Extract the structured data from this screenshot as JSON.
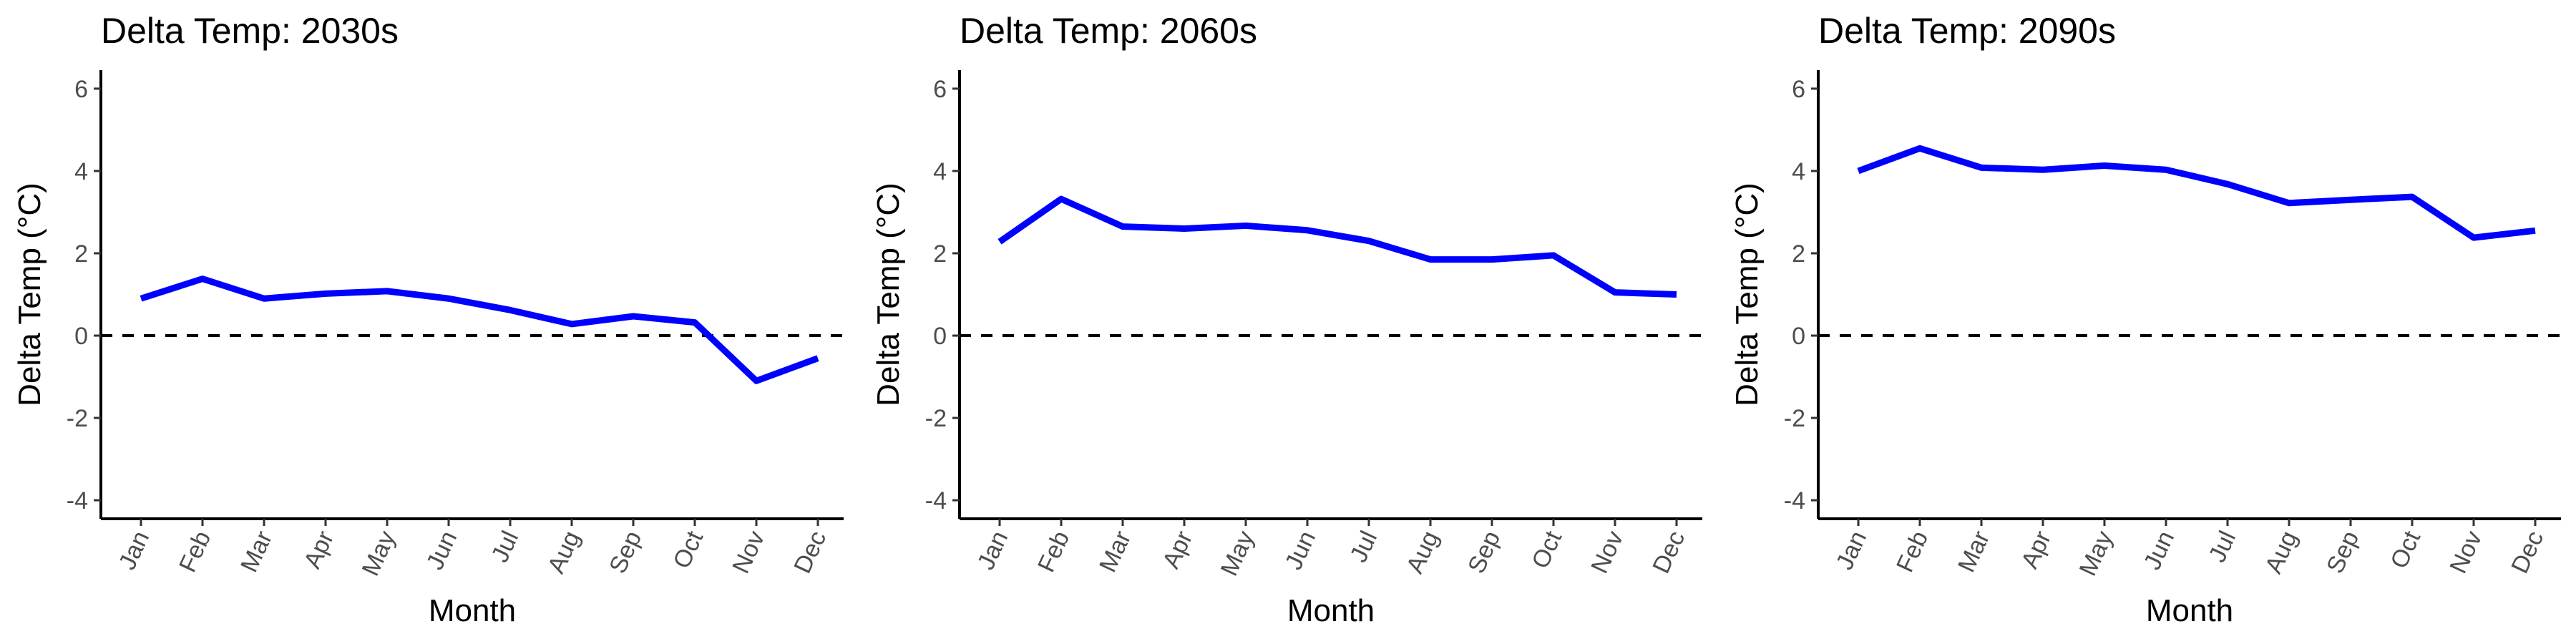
{
  "chart_data": [
    {
      "type": "line",
      "title": "Delta Temp: 2030s",
      "xlabel": "Month",
      "ylabel": "Delta Temp (°C)",
      "categories": [
        "Jan",
        "Feb",
        "Mar",
        "Apr",
        "May",
        "Jun",
        "Jul",
        "Aug",
        "Sep",
        "Oct",
        "Nov",
        "Dec"
      ],
      "yticks": [
        "-4",
        "-2",
        "0",
        "2",
        "4",
        "6"
      ],
      "ylim": [
        -4.45,
        6.45
      ],
      "values": [
        0.9,
        1.38,
        0.9,
        1.02,
        1.08,
        0.9,
        0.62,
        0.28,
        0.47,
        0.32,
        -1.1,
        -0.55
      ],
      "reference_line": 0,
      "grid": false,
      "line_color": "#0000ff"
    },
    {
      "type": "line",
      "title": "Delta Temp: 2060s",
      "xlabel": "Month",
      "ylabel": "Delta Temp (°C)",
      "categories": [
        "Jan",
        "Feb",
        "Mar",
        "Apr",
        "May",
        "Jun",
        "Jul",
        "Aug",
        "Sep",
        "Oct",
        "Nov",
        "Dec"
      ],
      "yticks": [
        "-4",
        "-2",
        "0",
        "2",
        "4",
        "6"
      ],
      "ylim": [
        -4.45,
        6.45
      ],
      "values": [
        2.28,
        3.32,
        2.65,
        2.6,
        2.67,
        2.56,
        2.3,
        1.85,
        1.85,
        1.95,
        1.05,
        1.0
      ],
      "reference_line": 0,
      "grid": false,
      "line_color": "#0000ff"
    },
    {
      "type": "line",
      "title": "Delta Temp: 2090s",
      "xlabel": "Month",
      "ylabel": "Delta Temp (°C)",
      "categories": [
        "Jan",
        "Feb",
        "Mar",
        "Apr",
        "May",
        "Jun",
        "Jul",
        "Aug",
        "Sep",
        "Oct",
        "Nov",
        "Dec"
      ],
      "yticks": [
        "-4",
        "-2",
        "0",
        "2",
        "4",
        "6"
      ],
      "ylim": [
        -4.45,
        6.45
      ],
      "values": [
        4.0,
        4.55,
        4.08,
        4.03,
        4.13,
        4.03,
        3.68,
        3.22,
        3.3,
        3.37,
        2.38,
        2.55
      ],
      "reference_line": 0,
      "grid": false,
      "line_color": "#0000ff"
    }
  ]
}
